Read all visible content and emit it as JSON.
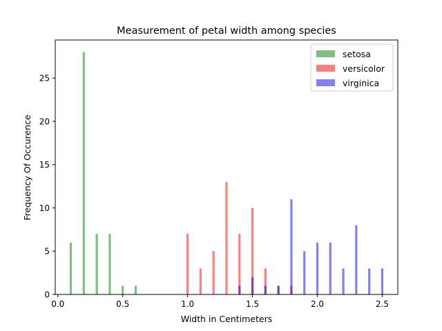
{
  "chart_data": {
    "type": "bar",
    "title": "Measurement of petal width among species",
    "xlabel": "Width in Centimeters",
    "ylabel": "Frequency Of Occurence",
    "xlim": [
      -0.02,
      2.62
    ],
    "ylim": [
      0,
      29.4
    ],
    "xticks": [
      "0.0",
      "0.5",
      "1.0",
      "1.5",
      "2.0",
      "2.5"
    ],
    "yticks": [
      "0",
      "5",
      "10",
      "15",
      "20",
      "25"
    ],
    "legend_position": "top-right",
    "grid": false,
    "series": [
      {
        "name": "setosa",
        "color": "#008000",
        "alpha": 0.5,
        "points": [
          [
            0.1,
            6
          ],
          [
            0.2,
            28
          ],
          [
            0.3,
            7
          ],
          [
            0.4,
            7
          ],
          [
            0.5,
            1
          ],
          [
            0.6,
            1
          ]
        ]
      },
      {
        "name": "versicolor",
        "color": "#ff0000",
        "alpha": 0.5,
        "points": [
          [
            1.0,
            7
          ],
          [
            1.1,
            3
          ],
          [
            1.2,
            5
          ],
          [
            1.3,
            13
          ],
          [
            1.4,
            7
          ],
          [
            1.5,
            10
          ],
          [
            1.6,
            3
          ],
          [
            1.7,
            1
          ],
          [
            1.8,
            1
          ]
        ]
      },
      {
        "name": "virginica",
        "color": "#0000ff",
        "alpha": 0.5,
        "points": [
          [
            1.4,
            1
          ],
          [
            1.5,
            2
          ],
          [
            1.6,
            1
          ],
          [
            1.7,
            1
          ],
          [
            1.8,
            11
          ],
          [
            1.9,
            5
          ],
          [
            2.0,
            6
          ],
          [
            2.1,
            6
          ],
          [
            2.2,
            3
          ],
          [
            2.3,
            8
          ],
          [
            2.4,
            3
          ],
          [
            2.5,
            3
          ]
        ]
      }
    ]
  }
}
